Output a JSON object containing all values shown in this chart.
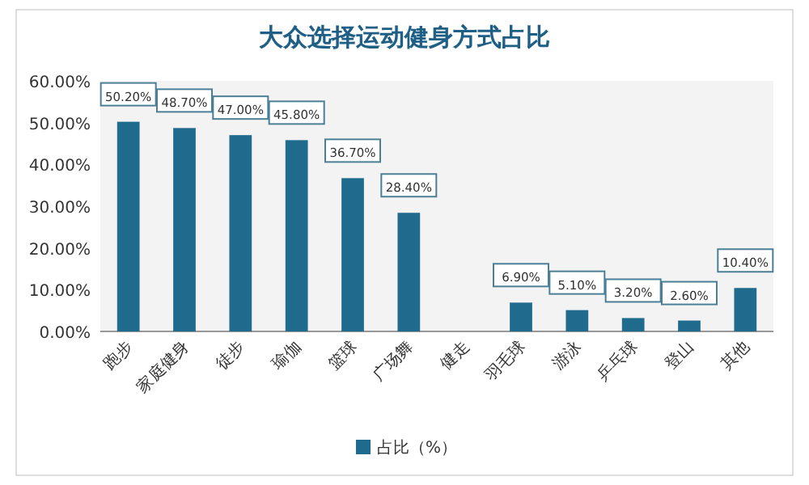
{
  "chart_data": {
    "type": "bar",
    "title": "大众选择运动健身方式占比",
    "categories": [
      "跑步",
      "家庭健身",
      "徒步",
      "瑜伽",
      "篮球",
      "广场舞",
      "健走",
      "羽毛球",
      "游泳",
      "乒乓球",
      "登山",
      "其他"
    ],
    "series": [
      {
        "name": "占比（%）",
        "color": "#1f6b8e",
        "values": [
          50.2,
          48.7,
          47.0,
          45.8,
          36.7,
          28.4,
          null,
          6.9,
          5.1,
          3.2,
          2.6,
          10.4
        ],
        "value_labels": [
          "50.20%",
          "48.70%",
          "47.00%",
          "45.80%",
          "36.70%",
          "28.40%",
          null,
          "6.90%",
          "5.10%",
          "3.20%",
          "2.60%",
          "10.40%"
        ]
      }
    ],
    "ylim": [
      0,
      60
    ],
    "yticks": [
      {
        "value": 0,
        "label": "0.00%"
      },
      {
        "value": 10,
        "label": "10.00%"
      },
      {
        "value": 20,
        "label": "20.00%"
      },
      {
        "value": 30,
        "label": "30.00%"
      },
      {
        "value": 40,
        "label": "40.00%"
      },
      {
        "value": 50,
        "label": "50.00%"
      },
      {
        "value": 60,
        "label": "60.00%"
      }
    ],
    "grid": false,
    "legend": "bottom"
  }
}
